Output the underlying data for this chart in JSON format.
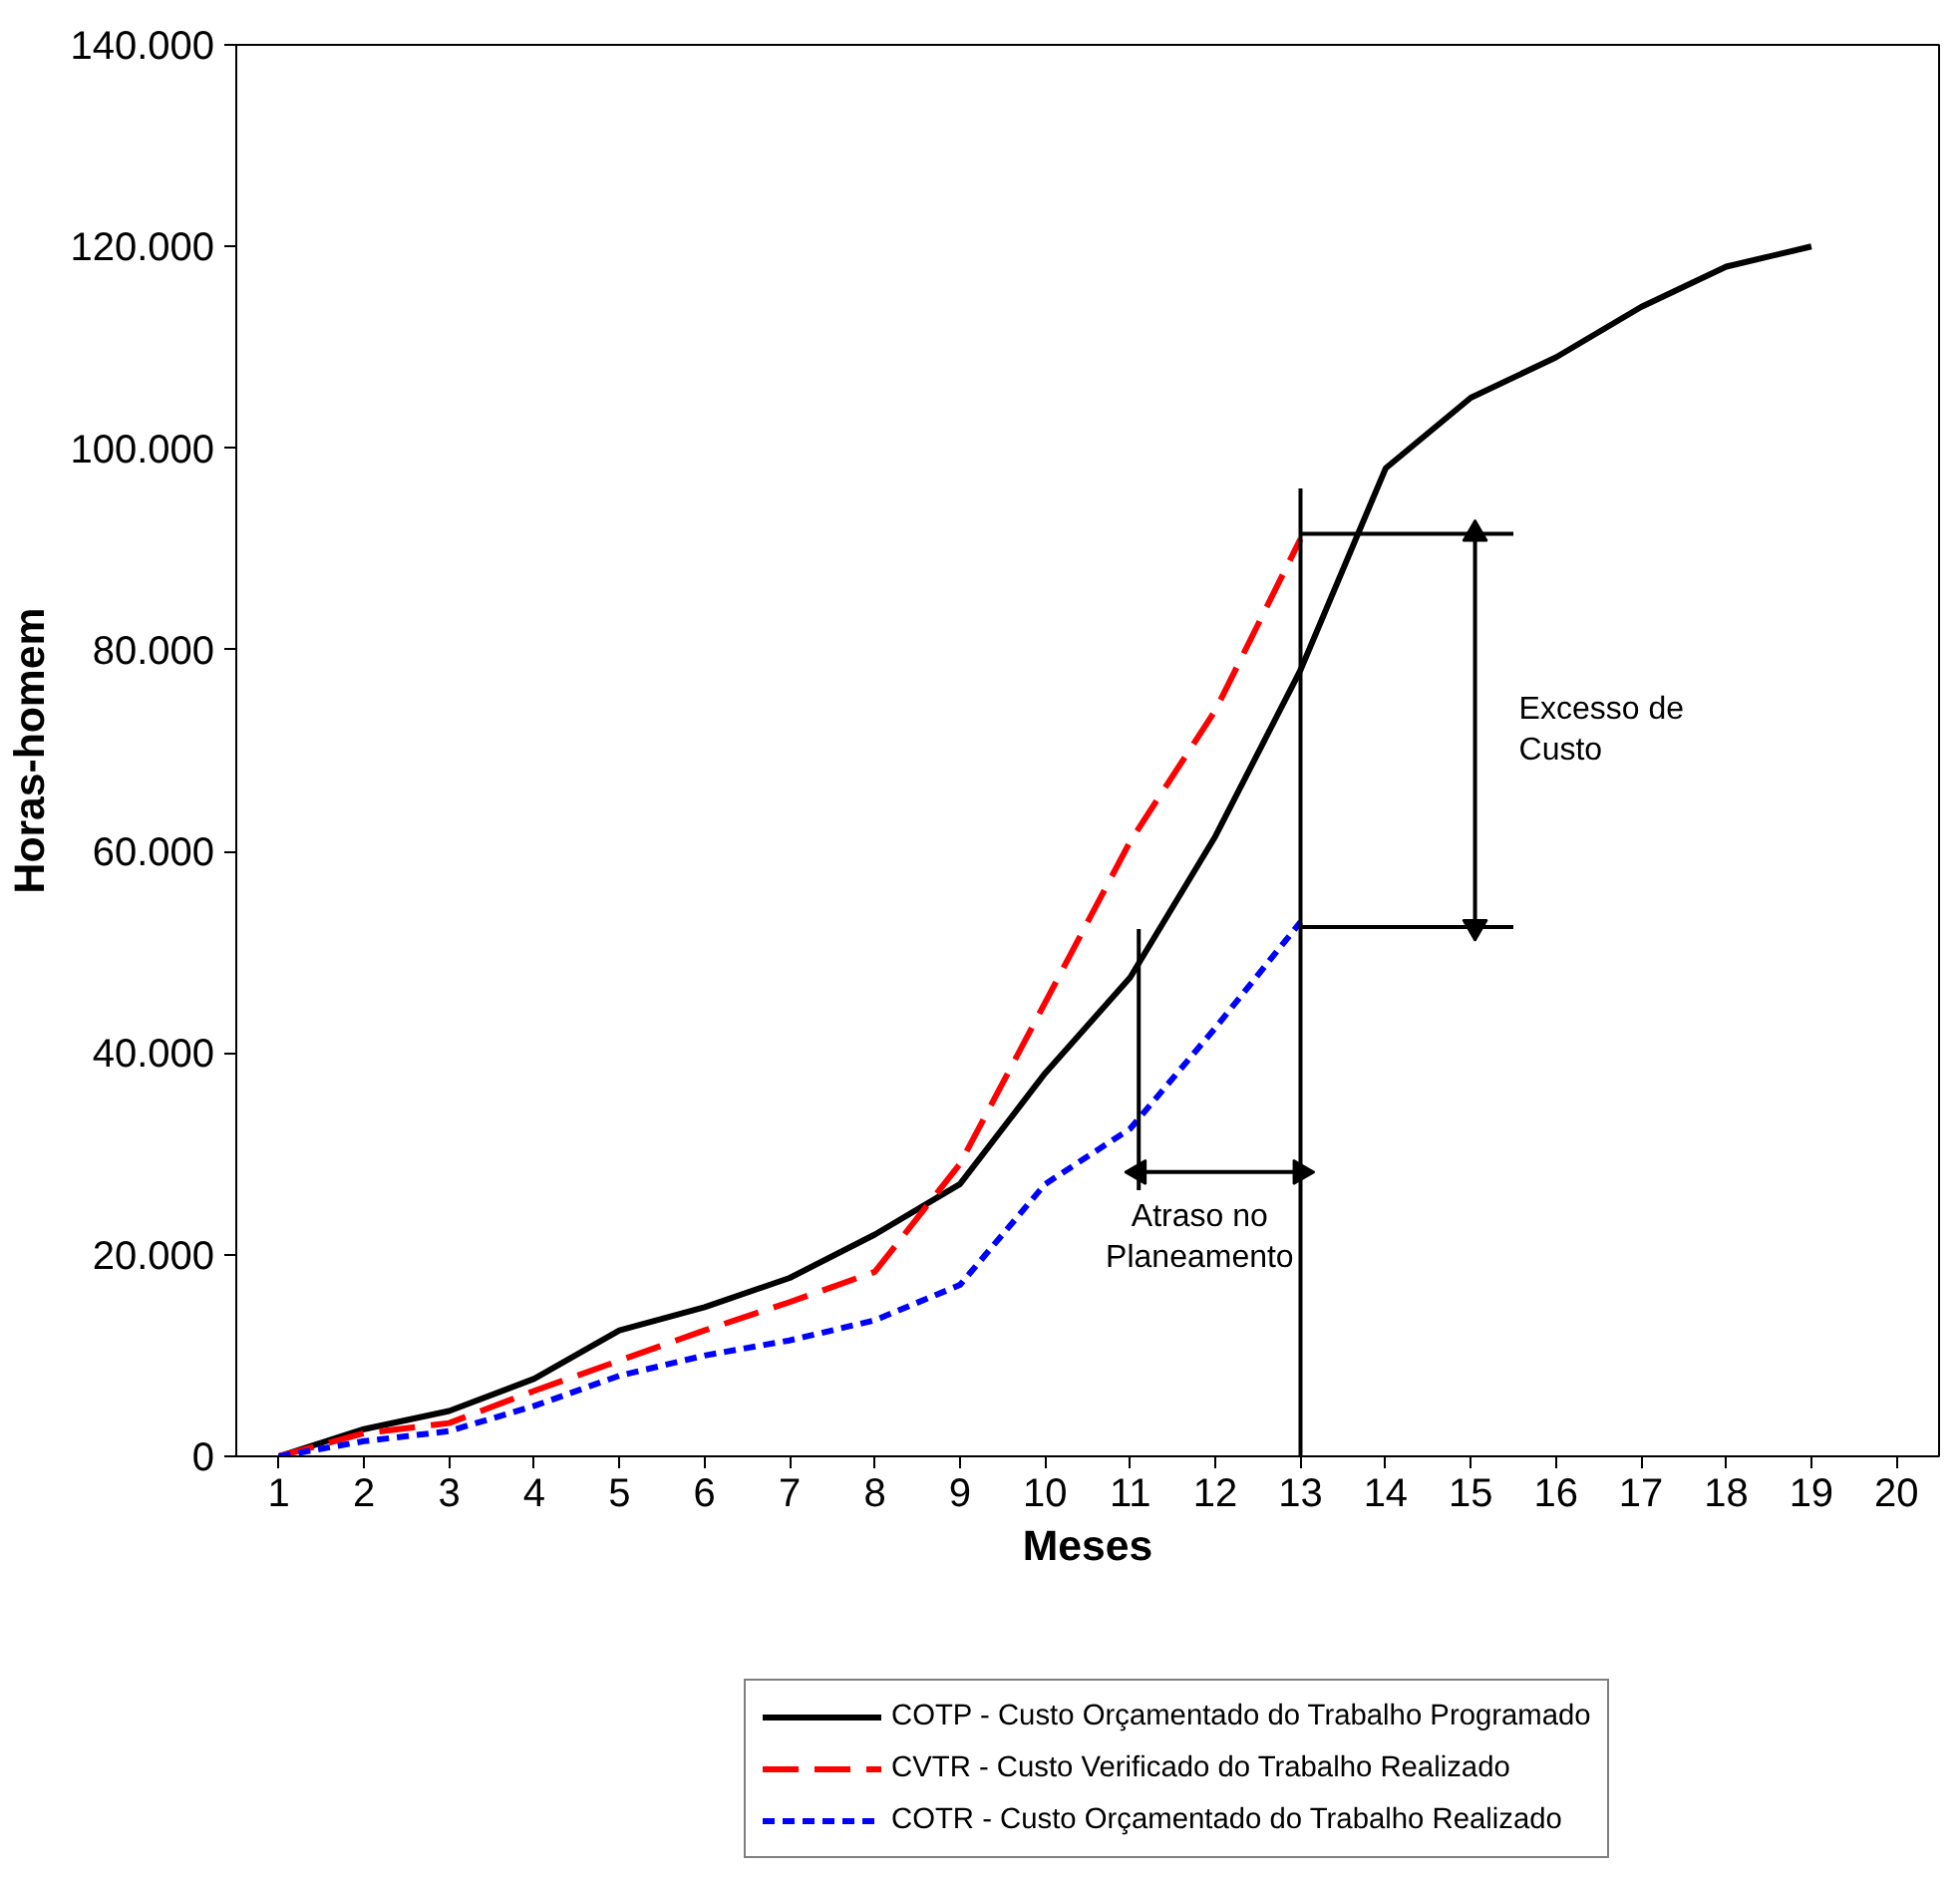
{
  "chart_data": {
    "type": "line",
    "xlabel": "Meses",
    "ylabel": "Horas-homem",
    "xlim": [
      0.5,
      20.5
    ],
    "xticks": [
      1,
      2,
      3,
      4,
      5,
      6,
      7,
      8,
      9,
      10,
      11,
      12,
      13,
      14,
      15,
      16,
      17,
      18,
      19,
      20
    ],
    "ylim": [
      0,
      140000
    ],
    "yticks": [
      {
        "value": 0,
        "label": "0"
      },
      {
        "value": 20000,
        "label": "20.000"
      },
      {
        "value": 40000,
        "label": "40.000"
      },
      {
        "value": 60000,
        "label": "60.000"
      },
      {
        "value": 80000,
        "label": "80.000"
      },
      {
        "value": 100000,
        "label": "100.000"
      },
      {
        "value": 120000,
        "label": "120.000"
      },
      {
        "value": 140000,
        "label": "140.000"
      }
    ],
    "grid": false,
    "legend": "bottom",
    "marker": "none",
    "series": [
      {
        "name": "COTP - Custo Orçamentado do Trabalho Programado",
        "color": "#000000",
        "line_style": "solid",
        "x": [
          1,
          2,
          3,
          4,
          5,
          6,
          7,
          8,
          9,
          10,
          11,
          12,
          13,
          14,
          15,
          16,
          17,
          18,
          19
        ],
        "values": [
          0,
          2700,
          4500,
          7700,
          12500,
          14800,
          17700,
          22000,
          27000,
          38000,
          47500,
          61500,
          78000,
          98000,
          105000,
          109000,
          114000,
          118000,
          120000
        ]
      },
      {
        "name": "CVTR - Custo Verificado do Trabalho Realizado",
        "color": "#ff0000",
        "line_style": "dashed",
        "x": [
          1,
          2,
          3,
          4,
          5,
          6,
          7,
          8,
          9,
          10,
          11,
          12,
          13
        ],
        "values": [
          0,
          2300,
          3300,
          6500,
          9500,
          12500,
          15300,
          18300,
          29000,
          45000,
          61000,
          74000,
          91000
        ]
      },
      {
        "name": "COTR - Custo Orçamentado do Trabalho Realizado",
        "color": "#0000ff",
        "line_style": "dotted",
        "x": [
          1,
          2,
          3,
          4,
          5,
          6,
          7,
          8,
          9,
          10,
          11,
          12,
          13
        ],
        "values": [
          0,
          1500,
          2500,
          5000,
          8000,
          10000,
          11500,
          13500,
          17000,
          27000,
          32500,
          42500,
          53000
        ]
      },
      {
        "color": "#000000",
        "line_style": "solid",
        "x": [
          13,
          13
        ],
        "values": [
          0,
          96000
        ]
      },
      {
        "color": "#000000",
        "line_style": "solid",
        "x": [
          11.1,
          11.1
        ],
        "values": [
          26400,
          52300
        ]
      },
      {
        "color": "#000000",
        "line_style": "solid",
        "x": [
          13,
          15.5
        ],
        "values": [
          91500,
          91500
        ]
      },
      {
        "color": "#000000",
        "line_style": "solid",
        "x": [
          13,
          15.5
        ],
        "values": [
          52500,
          52500
        ]
      },
      {
        "color": "#000000",
        "line_style": "solid",
        "marker": "triangle",
        "x": [
          15.05,
          15.05
        ],
        "values": [
          52500,
          91500
        ]
      },
      {
        "color": "#000000",
        "line_style": "solid",
        "marker": "triangle",
        "x": [
          11.1,
          13
        ],
        "values": [
          28200,
          28200
        ]
      }
    ],
    "annotations": [
      "Excesso de\nCusto",
      "Atraso no\nPlaneamento"
    ]
  }
}
